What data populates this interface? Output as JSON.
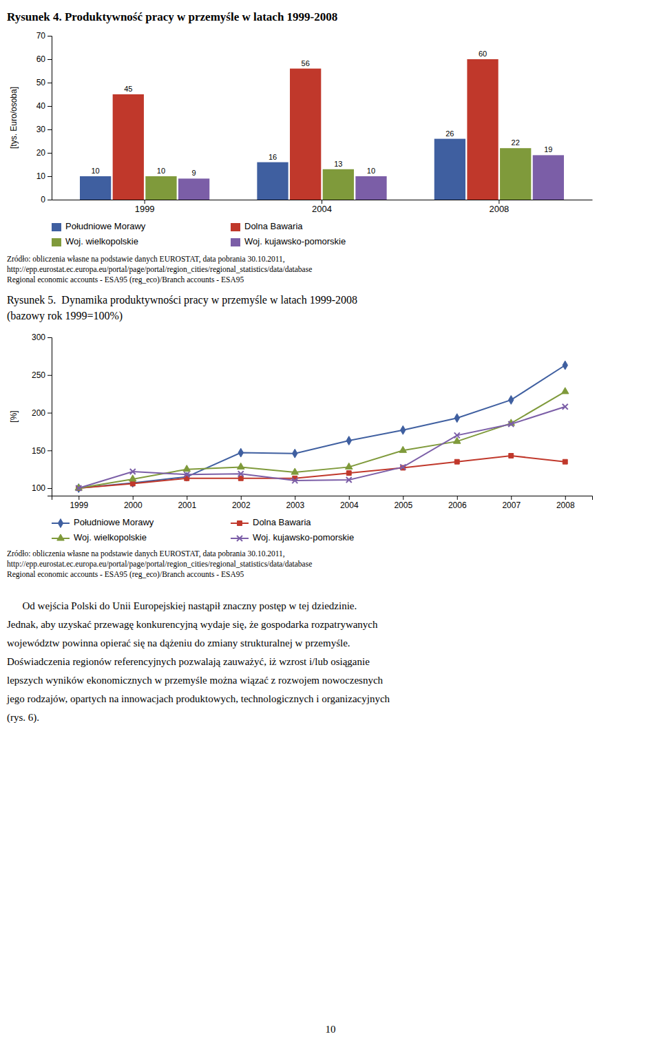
{
  "chart_data": [
    {
      "type": "bar",
      "title": "Rysunek 4. Produktywność pracy w przemyśle w latach 1999-2008",
      "y_label": "[tys. Euro/osoba]",
      "categories": [
        "1999",
        "2004",
        "2008"
      ],
      "series": [
        {
          "name": "Południowe Morawy",
          "color": "#3F5FA0",
          "values": [
            10,
            16,
            26
          ]
        },
        {
          "name": "Dolna Bawaria",
          "color": "#C0382B",
          "values": [
            45,
            56,
            60
          ]
        },
        {
          "name": "Woj. wielkopolskie",
          "color": "#7F9A3B",
          "values": [
            10,
            13,
            22
          ]
        },
        {
          "name": "Woj. kujawsko-pomorskie",
          "color": "#7B5EA7",
          "values": [
            9,
            10,
            19
          ]
        }
      ],
      "ylim": [
        0,
        70
      ],
      "yticks": [
        0,
        10,
        20,
        30,
        40,
        50,
        60,
        70
      ],
      "grid": false,
      "legend": "bottom",
      "data_labels": true,
      "source": [
        "Zródło: obliczenia własne na podstawie danych EUROSTAT, data pobrania 30.10.2011,",
        "http://epp.eurostat.ec.europa.eu/portal/page/portal/region_cities/regional_statistics/data/database",
        "Regional economic accounts - ESA95 (reg_eco)/Branch accounts - ESA95"
      ]
    },
    {
      "type": "line",
      "title": "Rysunek 5.  Dynamika produktywności pracy w przemyśle w latach 1999-2008",
      "subtitle": "(bazowy rok 1999=100%)",
      "y_label": "[%]",
      "x": [
        1999,
        2000,
        2001,
        2002,
        2003,
        2004,
        2005,
        2006,
        2007,
        2008
      ],
      "series": [
        {
          "name": "Południowe Morawy",
          "color": "#3F5FA0",
          "marker": "diamond",
          "values": [
            100,
            107,
            115,
            147,
            146,
            163,
            177,
            193,
            217,
            263
          ]
        },
        {
          "name": "Dolna Bawaria",
          "color": "#C0382B",
          "marker": "square",
          "values": [
            100,
            106,
            113,
            113,
            113,
            120,
            127,
            135,
            143,
            135
          ]
        },
        {
          "name": "Woj. wielkopolskie",
          "color": "#7F9A3B",
          "marker": "triangle",
          "values": [
            100,
            112,
            125,
            128,
            121,
            128,
            150,
            162,
            186,
            228
          ]
        },
        {
          "name": "Woj. kujawsko-pomorskie",
          "color": "#7B5EA7",
          "marker": "x",
          "values": [
            100,
            122,
            118,
            119,
            110,
            111,
            128,
            170,
            185,
            208
          ]
        }
      ],
      "xlim": [
        1998.5,
        2008.5
      ],
      "xticks": [
        1999,
        2000,
        2001,
        2002,
        2003,
        2004,
        2005,
        2006,
        2007,
        2008
      ],
      "ylim": [
        90,
        300
      ],
      "yticks": [
        100,
        150,
        200,
        250,
        300
      ],
      "grid": false,
      "legend": "bottom",
      "source": [
        "Zródło: obliczenia własne na podstawie danych EUROSTAT, data pobrania 30.10.2011,",
        "http://epp.eurostat.ec.europa.eu/portal/page/portal/region_cities/regional_statistics/data/database",
        "Regional economic accounts - ESA95 (reg_eco)/Branch accounts - ESA95"
      ]
    }
  ],
  "body_text": [
    "      Od wejścia Polski do Unii Europejskiej nastąpił znaczny postęp w tej dziedzinie.",
    "Jednak, aby uzyskać przewagę konkurencyjną wydaje się, że gospodarka rozpatrywanych",
    "województw powinna opierać się na dążeniu do zmiany strukturalnej w przemyśle.",
    "Doświadczenia regionów referencyjnych pozwalają zauważyć, iż wzrost i/lub osiąganie",
    "lepszych wyników ekonomicznych w przemyśle można wiązać z rozwojem nowoczesnych",
    "jego rodzajów, opartych na innowacjach produktowych, technologicznych i organizacyjnych",
    "(rys. 6)."
  ],
  "page_number": "10"
}
